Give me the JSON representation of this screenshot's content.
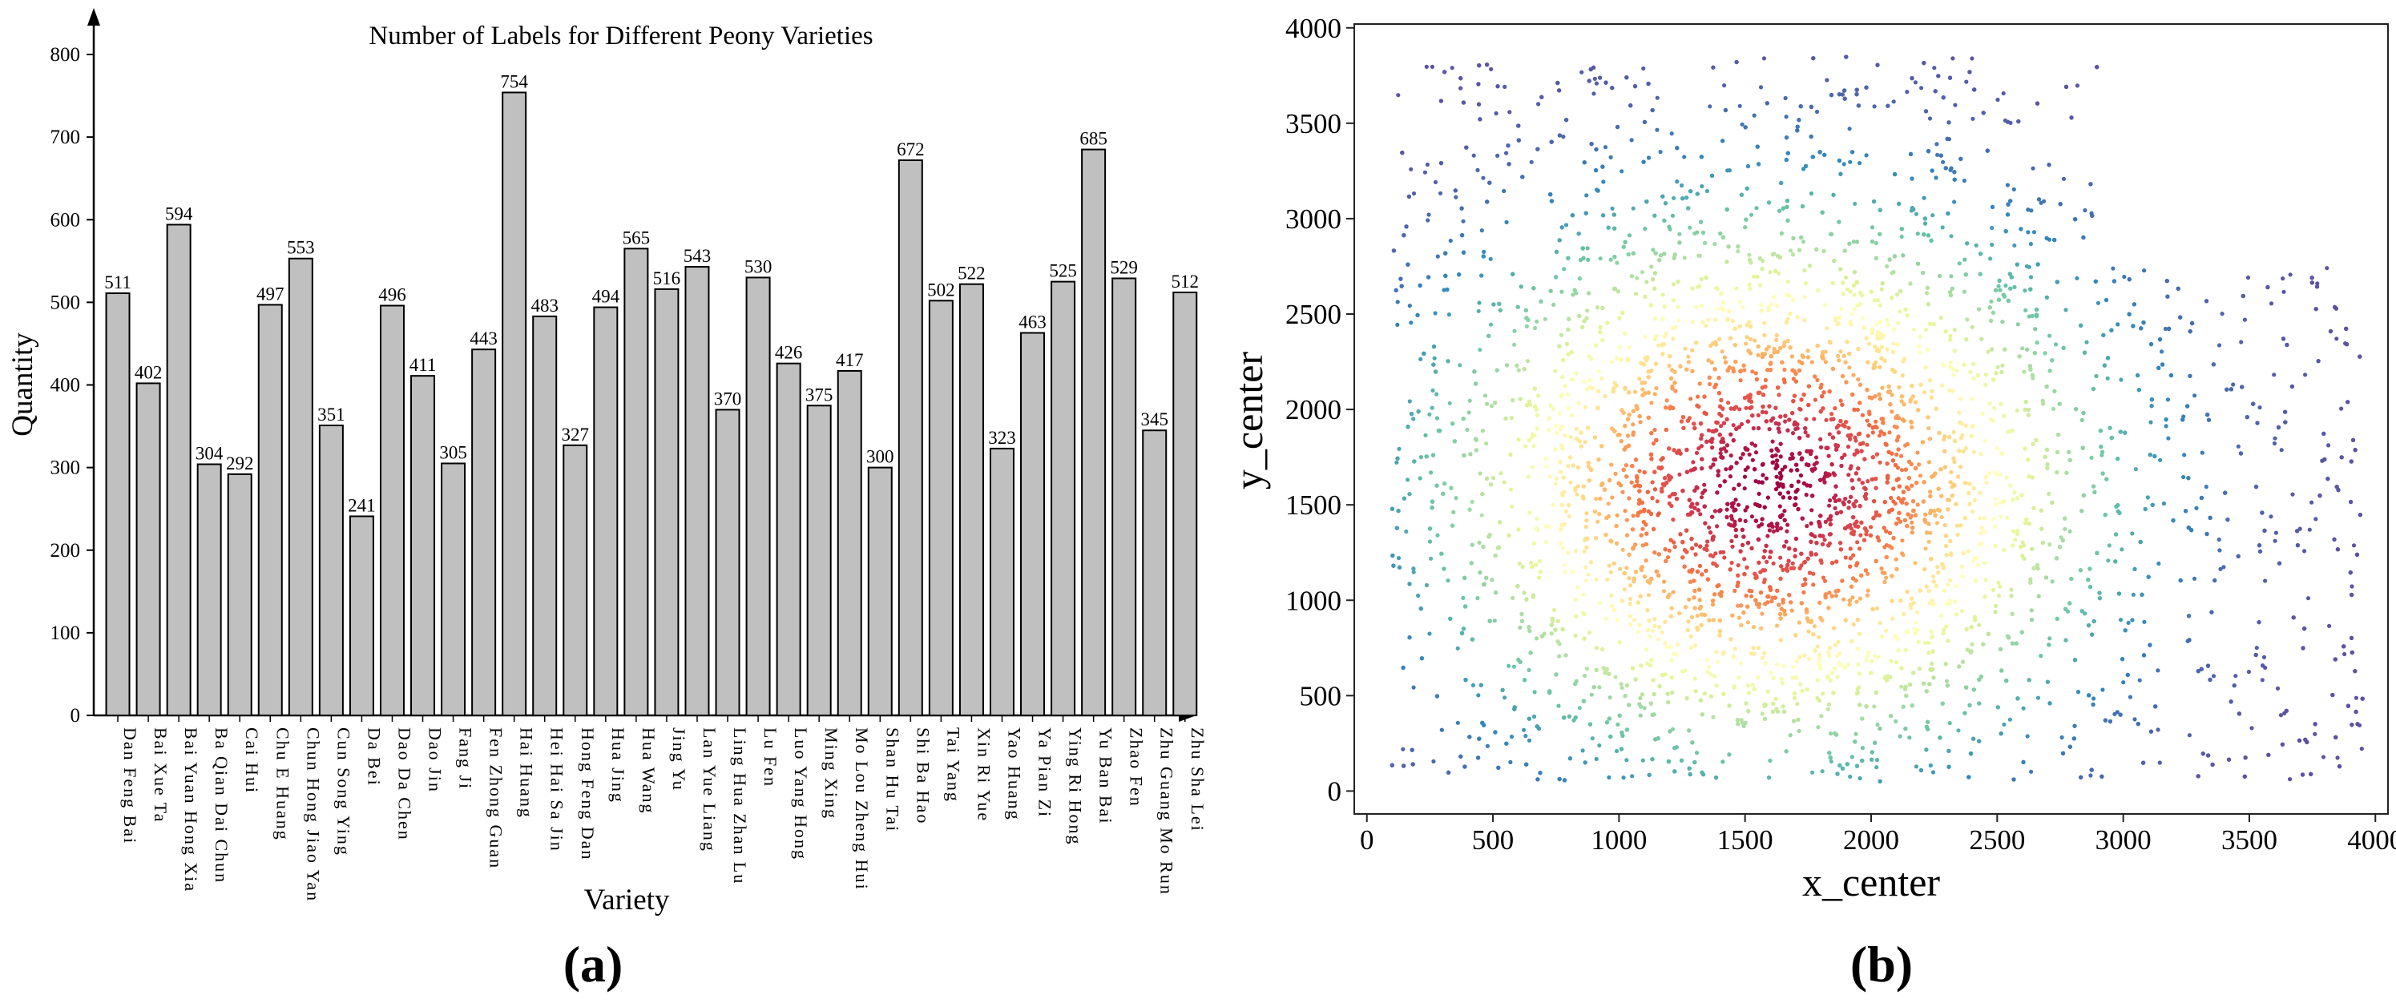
{
  "chart_data": [
    {
      "panel": "(a)",
      "type": "bar",
      "title": "Number of Labels for Different Peony Varieties",
      "xlabel": "Variety",
      "ylabel": "Quantity",
      "ylim": [
        0,
        800
      ],
      "yticks": [
        0,
        100,
        200,
        300,
        400,
        500,
        600,
        700,
        800
      ],
      "grid": false,
      "bar_color": "#c0c0c0",
      "categories": [
        "Dan Feng Bai",
        "Bai Xue Ta",
        "Bai Yuan Hong Xia",
        "Ba Qian Dai Chun",
        "Cai Hui",
        "Chu E Huang",
        "Chun Hong Jiao Yan",
        "Cun Song Ying",
        "Da Bei",
        "Dao Da Chen",
        "Dao Jin",
        "Fang Ji",
        "Fen Zhong Guan",
        "Hai Huang",
        "Hei Hai Sa Jin",
        "Hong Feng Dan",
        "Hua Jing",
        "Hua Wang",
        "Jing Yu",
        "Lan Yue Liang",
        "Ling Hua Zhan Lu",
        "Lu Fen",
        "Luo Yang Hong",
        "Ming Xing",
        "Mo Lou Zheng Hui",
        "Shan Hu Tai",
        "Shi Ba Hao",
        "Tai Yang",
        "Xin Ri Yue",
        "Yao Huang",
        "Ya Pian Zi",
        "Ying Ri Hong",
        "Yu Ban Bai",
        "Zhao Fen",
        "Zhu Guang Mo Run",
        "Zhu Sha Lei"
      ],
      "values": [
        511,
        402,
        594,
        304,
        292,
        497,
        553,
        351,
        241,
        496,
        411,
        305,
        443,
        754,
        483,
        327,
        494,
        565,
        516,
        543,
        370,
        530,
        426,
        375,
        417,
        300,
        672,
        502,
        522,
        323,
        463,
        525,
        685,
        529,
        345,
        512
      ]
    },
    {
      "panel": "(b)",
      "type": "scatter",
      "title": "",
      "xlabel": "x_center",
      "ylabel": "y_center",
      "xlim": [
        -50,
        4050
      ],
      "ylim": [
        -120,
        4020
      ],
      "xticks": [
        0,
        500,
        1000,
        1500,
        2000,
        2500,
        3000,
        3500,
        4000
      ],
      "yticks": [
        0,
        500,
        1000,
        1500,
        2000,
        2500,
        3000,
        3500,
        4000
      ],
      "grid": false,
      "colormap": "Spectral_r (point density)",
      "density_peak": [
        1600,
        1600
      ],
      "x_range": [
        100,
        3950
      ],
      "y_range": [
        50,
        3850
      ],
      "colors": [
        "#5e4fa2",
        "#3288bd",
        "#66c2a5",
        "#abdda4",
        "#e6f598",
        "#ffffbf",
        "#fee08b",
        "#fdae61",
        "#f46d43",
        "#d53e4f",
        "#9e0142"
      ]
    }
  ]
}
